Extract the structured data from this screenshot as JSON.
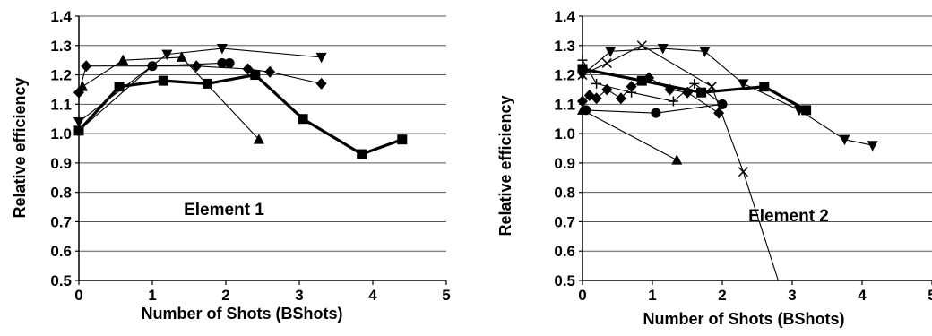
{
  "chart_data": [
    {
      "type": "line",
      "annotation": "Element 1",
      "xlabel": "Number of Shots (BShots)",
      "ylabel": "Relative efficiency",
      "xlim": [
        0,
        5
      ],
      "ylim": [
        0.5,
        1.4
      ],
      "xticks": [
        "0",
        "1",
        "2",
        "3",
        "4",
        "5"
      ],
      "yticks": [
        "0.5",
        "0.6",
        "0.7",
        "0.8",
        "0.9",
        "1.0",
        "1.1",
        "1.2",
        "1.3",
        "1.4"
      ],
      "grid": "horizontal",
      "series": [
        {
          "marker": "square",
          "emphasis": "thick",
          "points": [
            [
              0.0,
              1.01
            ],
            [
              0.55,
              1.16
            ],
            [
              1.15,
              1.18
            ],
            [
              1.75,
              1.17
            ],
            [
              2.4,
              1.2
            ],
            [
              3.05,
              1.05
            ],
            [
              3.85,
              0.93
            ],
            [
              4.4,
              0.98
            ]
          ]
        },
        {
          "marker": "circle",
          "points": [
            [
              0.0,
              1.01
            ],
            [
              1.0,
              1.23
            ],
            [
              1.95,
              1.24
            ],
            [
              2.05,
              1.24
            ]
          ]
        },
        {
          "marker": "diamond",
          "points": [
            [
              0.0,
              1.14
            ],
            [
              0.1,
              1.23
            ],
            [
              1.6,
              1.23
            ],
            [
              2.3,
              1.22
            ],
            [
              2.6,
              1.21
            ],
            [
              3.3,
              1.17
            ]
          ]
        },
        {
          "marker": "triangle-up",
          "points": [
            [
              0.05,
              1.16
            ],
            [
              0.6,
              1.25
            ],
            [
              1.4,
              1.26
            ],
            [
              2.45,
              0.98
            ]
          ]
        },
        {
          "marker": "triangle-down",
          "points": [
            [
              0.0,
              1.04
            ],
            [
              1.2,
              1.27
            ],
            [
              1.95,
              1.29
            ],
            [
              3.3,
              1.26
            ]
          ]
        }
      ]
    },
    {
      "type": "line",
      "annotation": "Element 2",
      "xlabel": "Number of Shots (BShots)",
      "ylabel": "Relative efficiency",
      "xlim": [
        0,
        5
      ],
      "ylim": [
        0.5,
        1.4
      ],
      "xticks": [
        "0",
        "1",
        "2",
        "3",
        "4",
        "5"
      ],
      "yticks": [
        "0.5",
        "0.6",
        "0.7",
        "0.8",
        "0.9",
        "1.0",
        "1.1",
        "1.2",
        "1.3",
        "1.4"
      ],
      "grid": "horizontal",
      "series": [
        {
          "marker": "square",
          "emphasis": "thick",
          "points": [
            [
              0.0,
              1.22
            ],
            [
              0.85,
              1.18
            ],
            [
              1.7,
              1.14
            ],
            [
              2.6,
              1.16
            ],
            [
              3.2,
              1.08
            ]
          ]
        },
        {
          "marker": "circle",
          "points": [
            [
              0.05,
              1.08
            ],
            [
              1.05,
              1.07
            ],
            [
              2.0,
              1.1
            ]
          ]
        },
        {
          "marker": "diamond",
          "points": [
            [
              0.0,
              1.11
            ],
            [
              0.1,
              1.13
            ],
            [
              0.2,
              1.12
            ],
            [
              0.35,
              1.15
            ],
            [
              0.55,
              1.12
            ],
            [
              0.7,
              1.16
            ],
            [
              0.95,
              1.19
            ],
            [
              1.25,
              1.15
            ],
            [
              1.5,
              1.14
            ],
            [
              1.95,
              1.07
            ]
          ]
        },
        {
          "marker": "triangle-up",
          "points": [
            [
              0.0,
              1.08
            ],
            [
              1.35,
              0.91
            ]
          ]
        },
        {
          "marker": "triangle-down",
          "points": [
            [
              0.0,
              1.2
            ],
            [
              0.4,
              1.28
            ],
            [
              1.15,
              1.29
            ],
            [
              1.75,
              1.28
            ],
            [
              2.3,
              1.17
            ],
            [
              3.1,
              1.08
            ],
            [
              3.75,
              0.98
            ],
            [
              4.15,
              0.96
            ]
          ]
        },
        {
          "marker": "cross",
          "points": [
            [
              0.0,
              1.2
            ],
            [
              0.35,
              1.24
            ],
            [
              0.85,
              1.3
            ],
            [
              1.85,
              1.16
            ],
            [
              2.3,
              0.87
            ],
            [
              2.8,
              0.5
            ]
          ]
        },
        {
          "marker": "plus",
          "points": [
            [
              0.0,
              1.25
            ],
            [
              0.2,
              1.17
            ],
            [
              0.7,
              1.14
            ],
            [
              1.3,
              1.11
            ],
            [
              1.6,
              1.17
            ],
            [
              2.0,
              1.1
            ]
          ]
        }
      ]
    }
  ]
}
